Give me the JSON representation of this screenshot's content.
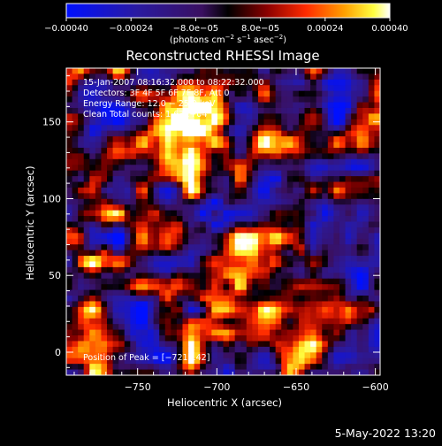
{
  "chart_data": {
    "type": "heatmap",
    "title": "Reconstructed RHESSI Image",
    "xlabel": "Heliocentric X (arcsec)",
    "ylabel": "Heliocentric Y (arcsec)",
    "xlim": [
      -795,
      -597
    ],
    "ylim": [
      -15,
      185
    ],
    "xticks": [
      -750,
      -700,
      -650,
      -600
    ],
    "xtick_labels": [
      "−750",
      "−700",
      "−650",
      "−600"
    ],
    "yticks": [
      0,
      50,
      100,
      150
    ],
    "ytick_labels": [
      "0",
      "50",
      "100",
      "150"
    ],
    "colorbar": {
      "min": -0.0004,
      "max": 0.0004,
      "tick_values": [
        -0.0004,
        -0.00024,
        -8e-05,
        8e-05,
        0.00024,
        0.0004
      ],
      "tick_labels": [
        "−0.00040",
        "−0.00024",
        "−8.0e−05",
        "8.0e−05",
        "0.00024",
        "0.00040"
      ],
      "units_prefix": "(photons cm",
      "units_exp1": "−2",
      "units_mid": " s",
      "units_exp2": "−1",
      "units_mid2": " asec",
      "units_exp3": "−2",
      "units_suffix": ")"
    },
    "info_lines": [
      "15-Jan-2007 08:16:32.000 to 08:22:32.000",
      "Detectors: 3F 4F 5F 6F 7F 8F, Att 0",
      "Energy Range: 12.0 − 25.0 keV",
      "Clean     Total counts: 1.63E+04"
    ],
    "peak_text": "Position of Peak = [−721,142]",
    "peak": {
      "x": -721,
      "y": 142
    },
    "grid": false
  },
  "footer": {
    "timestamp": "5-May-2022 13:20"
  }
}
